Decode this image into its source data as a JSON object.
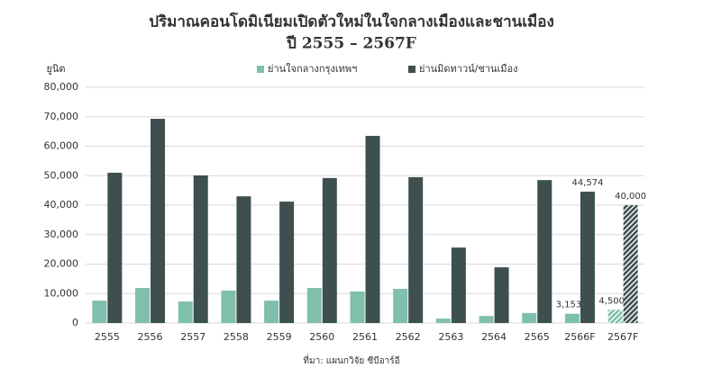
{
  "chart_data": {
    "type": "bar",
    "title": "ปริมาณคอนโดมิเนียมเปิดตัวใหม่ในใจกลางเมืองและชานเมือง",
    "subtitle": "ปี 2555 – 2567F",
    "y_label": "ยูนิต",
    "source": "ที่มา: แผนกวิจัย ซีบีอาร์อี",
    "categories": [
      "2555",
      "2556",
      "2557",
      "2558",
      "2559",
      "2560",
      "2561",
      "2562",
      "2563",
      "2564",
      "2565",
      "2566F",
      "2567F"
    ],
    "hatched_categories": [
      "2567F"
    ],
    "series": [
      {
        "name": "ย่านใจกลางกรุงเทพฯ",
        "color": "#7fbfab",
        "values": [
          7600,
          11900,
          7300,
          11000,
          7600,
          11900,
          10700,
          11600,
          1500,
          2400,
          3400,
          3153,
          4500
        ],
        "value_labels": [
          null,
          null,
          null,
          null,
          null,
          null,
          null,
          null,
          null,
          null,
          null,
          "3,153",
          "4,500"
        ]
      },
      {
        "name": "ย่านมิดทาวน์/ชานเมือง",
        "color": "#3e4f50",
        "values": [
          51000,
          69300,
          50100,
          43000,
          41200,
          49200,
          63500,
          49500,
          25600,
          18900,
          48500,
          44574,
          40000
        ],
        "value_labels": [
          null,
          null,
          null,
          null,
          null,
          null,
          null,
          null,
          null,
          null,
          null,
          "44,574",
          "40,000"
        ]
      }
    ],
    "ylim": [
      0,
      80000
    ],
    "yticks": [
      0,
      {
        "value": 10000,
        "label": "10,000"
      },
      {
        "value": 20000,
        "label": "20,000"
      },
      {
        "value": 30000,
        "label": "30,000"
      },
      {
        "value": 40000,
        "label": "40,000"
      },
      {
        "value": 50000,
        "label": "50,000"
      },
      {
        "value": 60000,
        "label": "60,000"
      },
      {
        "value": 70000,
        "label": "70,000"
      },
      {
        "value": 80000,
        "label": "80,000"
      }
    ],
    "grid": true
  }
}
